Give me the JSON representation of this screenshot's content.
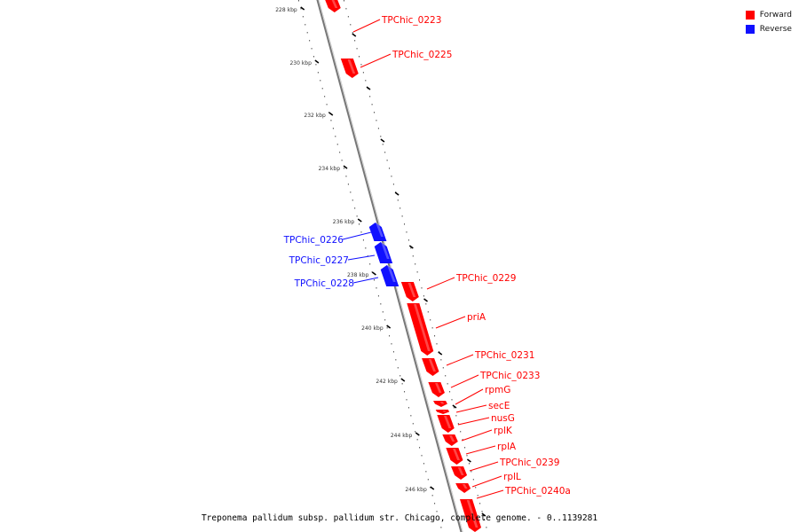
{
  "legend": {
    "forward_label": "Forward",
    "reverse_label": "Reverse",
    "forward_color": "#ff0000",
    "reverse_color": "#1010ff"
  },
  "caption": "Treponema pallidum subsp. pallidum str. Chicago, complete genome. - 0..1139281",
  "ticks": [
    "228 kbp",
    "230 kbp",
    "232 kbp",
    "234 kbp",
    "236 kbp",
    "238 kbp",
    "240 kbp",
    "242 kbp",
    "244 kbp",
    "246 kbp"
  ],
  "genes": [
    {
      "name": "TPChic_0223",
      "strand": "forward"
    },
    {
      "name": "TPChic_0225",
      "strand": "forward"
    },
    {
      "name": "TPChic_0226",
      "strand": "reverse"
    },
    {
      "name": "TPChic_0227",
      "strand": "reverse"
    },
    {
      "name": "TPChic_0228",
      "strand": "reverse"
    },
    {
      "name": "TPChic_0229",
      "strand": "forward"
    },
    {
      "name": "priA",
      "strand": "forward"
    },
    {
      "name": "TPChic_0231",
      "strand": "forward"
    },
    {
      "name": "TPChic_0233",
      "strand": "forward"
    },
    {
      "name": "rpmG",
      "strand": "forward"
    },
    {
      "name": "secE",
      "strand": "forward"
    },
    {
      "name": "nusG",
      "strand": "forward"
    },
    {
      "name": "rplK",
      "strand": "forward"
    },
    {
      "name": "rplA",
      "strand": "forward"
    },
    {
      "name": "TPChic_0239",
      "strand": "forward"
    },
    {
      "name": "rplL",
      "strand": "forward"
    },
    {
      "name": "TPChic_0240a",
      "strand": "forward"
    }
  ]
}
